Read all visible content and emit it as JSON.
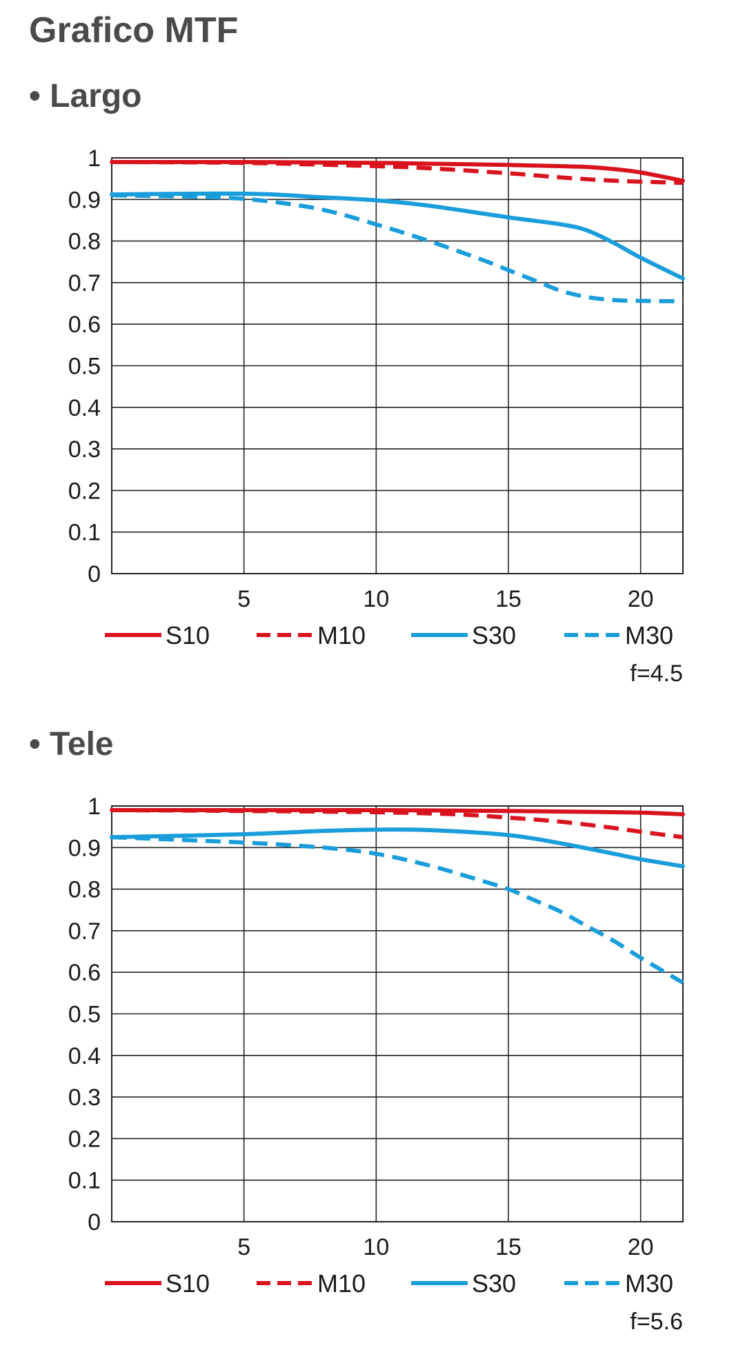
{
  "page": {
    "title": "Grafico MTF"
  },
  "sections": [
    {
      "title": "• Largo",
      "note": "f=4.5"
    },
    {
      "title": "• Tele",
      "note": "f=5.6"
    }
  ],
  "colors": {
    "red": "#d9131e",
    "blue": "#1a9ddb",
    "grid": "#222222"
  },
  "chart_data": [
    {
      "type": "line",
      "title": "",
      "xlabel": "",
      "ylabel": "",
      "xlim": [
        0,
        21.6
      ],
      "ylim": [
        0,
        1
      ],
      "x_ticks": [
        5,
        10,
        15,
        20
      ],
      "x_tick_labels": [
        "5",
        "10",
        "15",
        "20"
      ],
      "y_ticks": [
        0,
        0.1,
        0.2,
        0.3,
        0.4,
        0.5,
        0.6,
        0.7,
        0.8,
        0.9,
        1
      ],
      "y_tick_labels": [
        "0",
        "0.1",
        "0.2",
        "0.3",
        "0.4",
        "0.5",
        "0.6",
        "0.7",
        "0.8",
        "0.9",
        "1"
      ],
      "grid": true,
      "legend": "bottom",
      "series": [
        {
          "name": "S10",
          "color": "#d9131e",
          "dashed": false,
          "x": [
            0,
            5,
            10,
            12,
            15,
            17,
            18,
            19,
            20,
            21.6
          ],
          "y": [
            0.99,
            0.99,
            0.988,
            0.986,
            0.983,
            0.98,
            0.978,
            0.973,
            0.965,
            0.945
          ]
        },
        {
          "name": "M10",
          "color": "#d9131e",
          "dashed": true,
          "x": [
            0,
            5,
            10,
            12,
            15,
            17,
            19,
            21.6
          ],
          "y": [
            0.99,
            0.988,
            0.98,
            0.975,
            0.963,
            0.953,
            0.945,
            0.94
          ]
        },
        {
          "name": "S30",
          "color": "#1a9ddb",
          "dashed": false,
          "x": [
            0,
            5,
            8,
            10,
            12,
            15,
            17,
            18,
            19,
            20,
            21.6
          ],
          "y": [
            0.912,
            0.914,
            0.905,
            0.898,
            0.885,
            0.857,
            0.84,
            0.825,
            0.795,
            0.76,
            0.71
          ]
        },
        {
          "name": "M30",
          "color": "#1a9ddb",
          "dashed": true,
          "x": [
            0,
            4,
            6,
            8,
            10,
            12,
            14,
            15,
            16,
            17,
            18,
            19,
            20,
            21.6
          ],
          "y": [
            0.91,
            0.905,
            0.895,
            0.875,
            0.84,
            0.8,
            0.755,
            0.73,
            0.705,
            0.68,
            0.665,
            0.658,
            0.656,
            0.655
          ]
        }
      ]
    },
    {
      "type": "line",
      "title": "",
      "xlabel": "",
      "ylabel": "",
      "xlim": [
        0,
        21.6
      ],
      "ylim": [
        0,
        1
      ],
      "x_ticks": [
        5,
        10,
        15,
        20
      ],
      "x_tick_labels": [
        "5",
        "10",
        "15",
        "20"
      ],
      "y_ticks": [
        0,
        0.1,
        0.2,
        0.3,
        0.4,
        0.5,
        0.6,
        0.7,
        0.8,
        0.9,
        1
      ],
      "y_tick_labels": [
        "0",
        "0.1",
        "0.2",
        "0.3",
        "0.4",
        "0.5",
        "0.6",
        "0.7",
        "0.8",
        "0.9",
        "1"
      ],
      "grid": true,
      "legend": "bottom",
      "series": [
        {
          "name": "S10",
          "color": "#d9131e",
          "dashed": false,
          "x": [
            0,
            5,
            10,
            15,
            18,
            20,
            21.6
          ],
          "y": [
            0.99,
            0.99,
            0.99,
            0.988,
            0.986,
            0.984,
            0.98
          ]
        },
        {
          "name": "M10",
          "color": "#d9131e",
          "dashed": true,
          "x": [
            0,
            5,
            10,
            13,
            15,
            17,
            19,
            20,
            21.6
          ],
          "y": [
            0.99,
            0.988,
            0.985,
            0.98,
            0.972,
            0.962,
            0.947,
            0.938,
            0.925
          ]
        },
        {
          "name": "S30",
          "color": "#1a9ddb",
          "dashed": false,
          "x": [
            0,
            5,
            8,
            10,
            12,
            15,
            17,
            19,
            20,
            21.6
          ],
          "y": [
            0.925,
            0.932,
            0.94,
            0.943,
            0.942,
            0.93,
            0.91,
            0.885,
            0.872,
            0.855
          ]
        },
        {
          "name": "M30",
          "color": "#1a9ddb",
          "dashed": true,
          "x": [
            0,
            5,
            8,
            10,
            12,
            14,
            15,
            16,
            17,
            18,
            19,
            20,
            21.6
          ],
          "y": [
            0.925,
            0.912,
            0.9,
            0.885,
            0.857,
            0.82,
            0.8,
            0.773,
            0.745,
            0.71,
            0.675,
            0.635,
            0.575
          ]
        }
      ]
    }
  ]
}
